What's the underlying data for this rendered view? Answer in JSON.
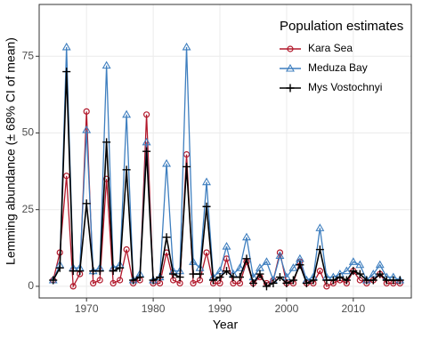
{
  "chart_data": {
    "type": "line",
    "x_label": "Year",
    "y_label": "Lemming abundance (± 68% CI of mean)",
    "legend_title": "Population estimates",
    "legend_position": "top-right",
    "grid": true,
    "x": [
      1965,
      1966,
      1967,
      1968,
      1969,
      1970,
      1971,
      1972,
      1973,
      1974,
      1975,
      1976,
      1977,
      1978,
      1979,
      1980,
      1981,
      1982,
      1983,
      1984,
      1985,
      1986,
      1987,
      1988,
      1989,
      1990,
      1991,
      1992,
      1993,
      1994,
      1995,
      1996,
      1997,
      1998,
      1999,
      2000,
      2001,
      2002,
      2003,
      2004,
      2005,
      2006,
      2007,
      2008,
      2009,
      2010,
      2011,
      2012,
      2013,
      2014,
      2015,
      2016,
      2017
    ],
    "series": [
      {
        "name": "Kara Sea",
        "color": "#b2182b",
        "marker": "circle",
        "values": [
          2,
          11,
          36,
          0,
          4,
          57,
          1,
          2,
          35,
          1,
          2,
          12,
          1,
          2,
          56,
          1,
          1,
          11,
          2,
          1,
          43,
          1,
          2,
          11,
          1,
          1,
          9,
          1,
          1,
          8,
          1,
          3,
          1,
          2,
          11,
          1,
          1,
          8,
          1,
          1,
          5,
          0,
          1,
          2,
          1,
          5,
          2,
          1,
          2,
          4,
          1,
          1,
          1
        ]
      },
      {
        "name": "Meduza Bay",
        "color": "#3f7fbf",
        "marker": "triangle",
        "values": [
          2,
          7,
          78,
          6,
          6,
          51,
          5,
          6,
          72,
          6,
          7,
          56,
          2,
          4,
          47,
          2,
          3,
          40,
          5,
          5,
          78,
          8,
          6,
          34,
          3,
          5,
          13,
          4,
          6,
          16,
          3,
          6,
          8,
          2,
          10,
          3,
          6,
          9,
          2,
          3,
          19,
          3,
          3,
          4,
          5,
          8,
          7,
          2,
          4,
          7,
          3,
          3,
          2
        ]
      },
      {
        "name": "Mys Vostochnyi",
        "color": "#000000",
        "marker": "plus",
        "values": [
          2,
          6,
          70,
          5,
          5,
          27,
          5,
          5,
          47,
          5,
          6,
          38,
          2,
          3,
          44,
          2,
          3,
          16,
          4,
          3,
          39,
          4,
          4,
          26,
          2,
          3,
          5,
          3,
          3,
          9,
          1,
          4,
          0,
          1,
          3,
          1,
          2,
          7,
          1,
          2,
          12,
          2,
          2,
          3,
          2,
          5,
          4,
          2,
          2,
          4,
          2,
          2,
          2
        ]
      }
    ],
    "xlim": [
      1962.9,
      2018.7
    ],
    "xticks": [
      1970,
      1980,
      1990,
      2000,
      2010
    ],
    "ylim": [
      -3.8,
      91.9
    ],
    "yticks": [
      0,
      25,
      50,
      75
    ]
  }
}
